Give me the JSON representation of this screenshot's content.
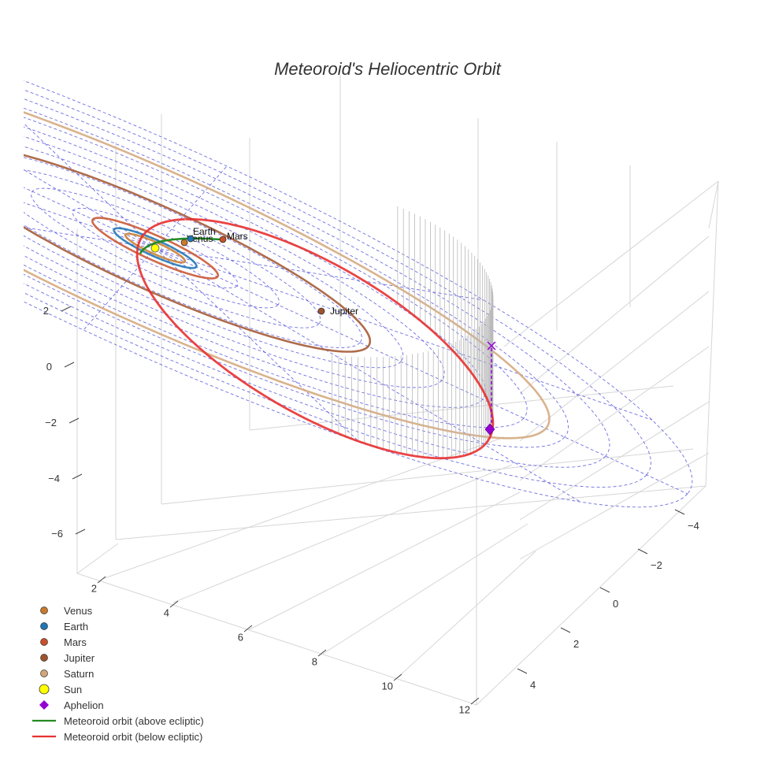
{
  "chart_data": {
    "type": "scatter3d",
    "title": "Meteoroid's Heliocentric Orbit",
    "axes": {
      "x": {
        "ticks": [
          2,
          4,
          6,
          8,
          10,
          12
        ]
      },
      "y": {
        "ticks": [
          -4,
          -2,
          0,
          2,
          4
        ]
      },
      "z": {
        "ticks": [
          2,
          0,
          -2,
          -4,
          -6
        ]
      }
    },
    "planets": [
      {
        "name": "Venus",
        "orbit_radius": 0.72,
        "color": "#c97a2b",
        "show_label": true
      },
      {
        "name": "Earth",
        "orbit_radius": 1.0,
        "color": "#1f77b4",
        "show_label": true
      },
      {
        "name": "Mars",
        "orbit_radius": 1.52,
        "color": "#c8502a",
        "show_label": true
      },
      {
        "name": "Jupiter",
        "orbit_radius": 5.2,
        "color": "#a0522d",
        "show_label": true
      },
      {
        "name": "Saturn",
        "orbit_radius": 9.54,
        "color": "#d2a679",
        "show_label": false
      }
    ],
    "sun": {
      "name": "Sun",
      "color": "#ffff00"
    },
    "aphelion": {
      "name": "Aphelion",
      "color": "#9400d3"
    },
    "meteoroid": {
      "above_name": "Meteoroid orbit (above ecliptic)",
      "above_color": "#228b22",
      "below_name": "Meteoroid orbit (below ecliptic)",
      "below_color": "#e83030"
    },
    "ecliptic_grid_color": "#5555dd",
    "legend": [
      {
        "label": "Venus",
        "symbol": "circle",
        "color": "#c97a2b"
      },
      {
        "label": "Earth",
        "symbol": "circle",
        "color": "#1f77b4"
      },
      {
        "label": "Mars",
        "symbol": "circle",
        "color": "#c8502a"
      },
      {
        "label": "Jupiter",
        "symbol": "circle",
        "color": "#a0522d"
      },
      {
        "label": "Saturn",
        "symbol": "circle",
        "color": "#d2a679"
      },
      {
        "label": "Sun",
        "symbol": "sun",
        "color": "#ffff00"
      },
      {
        "label": "Aphelion",
        "symbol": "diamond",
        "color": "#9400d3"
      },
      {
        "label": "Meteoroid orbit (above ecliptic)",
        "symbol": "line",
        "color": "#228b22"
      },
      {
        "label": "Meteoroid orbit (below ecliptic)",
        "symbol": "line",
        "color": "#e83030"
      }
    ],
    "legend_position": "bottom-left"
  }
}
